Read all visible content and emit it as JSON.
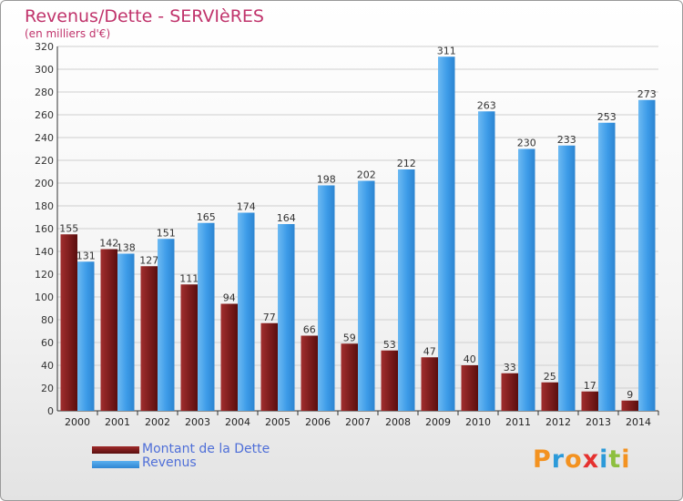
{
  "header": {
    "title": "Revenus/Dette - SERVIèRES",
    "subtitle": "(en milliers d'€)"
  },
  "logo": {
    "text": "Proxiti",
    "colors": [
      "#f39220",
      "#2c9ad9",
      "#f39220",
      "#e5312f",
      "#2c9ad9",
      "#8dbf3f",
      "#f39220"
    ]
  },
  "colors": {
    "debt": "#7b1c1c",
    "revenue": "#3c9be8",
    "title": "#c0336b",
    "legend_text": "#4f6fd8"
  },
  "chart_data": {
    "type": "bar",
    "title": "Revenus/Dette - SERVIèRES",
    "subtitle": "(en milliers d'€)",
    "xlabel": "",
    "ylabel": "",
    "categories": [
      "2000",
      "2001",
      "2002",
      "2003",
      "2004",
      "2005",
      "2006",
      "2007",
      "2008",
      "2009",
      "2010",
      "2011",
      "2012",
      "2013",
      "2014"
    ],
    "series": [
      {
        "name": "Montant de la Dette",
        "values": [
          155,
          142,
          127,
          111,
          94,
          77,
          66,
          59,
          53,
          47,
          40,
          33,
          25,
          17,
          9
        ]
      },
      {
        "name": "Revenus",
        "values": [
          131,
          138,
          151,
          165,
          174,
          164,
          198,
          202,
          212,
          311,
          263,
          230,
          233,
          253,
          273
        ]
      }
    ],
    "ylim": [
      0,
      320
    ],
    "yticks": [
      0,
      20,
      40,
      60,
      80,
      100,
      120,
      140,
      160,
      180,
      200,
      220,
      240,
      260,
      280,
      300,
      320
    ],
    "grid": true,
    "legend_position": "bottom-left"
  }
}
